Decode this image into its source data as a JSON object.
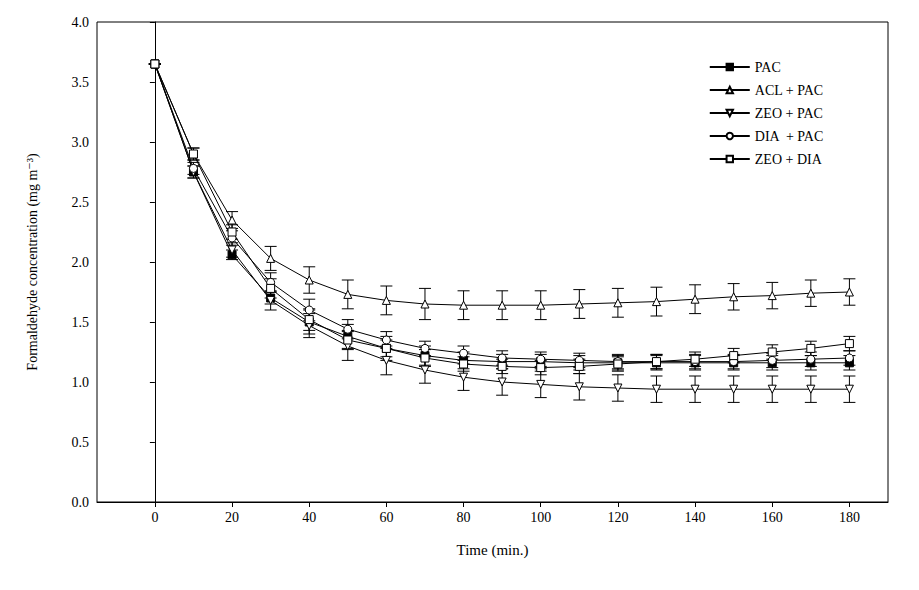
{
  "chart_data": {
    "type": "line",
    "x_label": "Time (min.)",
    "y_label": "Formaldehyde concentration (mg m⁻³)",
    "x": [
      0,
      10,
      20,
      30,
      40,
      50,
      60,
      70,
      80,
      90,
      100,
      110,
      120,
      130,
      140,
      150,
      160,
      170,
      180
    ],
    "xlim": [
      -15,
      190
    ],
    "xticks": [
      0,
      20,
      40,
      60,
      80,
      100,
      120,
      140,
      160,
      180
    ],
    "ylim": [
      0,
      4
    ],
    "yticks": [
      {
        "value": 0,
        "label": "0.0"
      },
      {
        "value": 0.5,
        "label": "0.5"
      },
      {
        "value": 1,
        "label": "1.0"
      },
      {
        "value": 1.5,
        "label": "1.5"
      },
      {
        "value": 2,
        "label": "2.0"
      },
      {
        "value": 2.5,
        "label": "2.5"
      },
      {
        "value": 3,
        "label": "3.0"
      },
      {
        "value": 3.5,
        "label": "3.5"
      },
      {
        "value": 4,
        "label": "4.0"
      }
    ],
    "grid": false,
    "legend": "upper right",
    "series": [
      {
        "name": "PAC",
        "color": "#000000",
        "marker": "filled_square",
        "line_style": "solid",
        "values": [
          3.65,
          2.75,
          2.06,
          1.7,
          1.5,
          1.38,
          1.28,
          1.22,
          1.18,
          1.17,
          1.17,
          1.16,
          1.16,
          1.16,
          1.16,
          1.16,
          1.16,
          1.16,
          1.16
        ],
        "errors": [
          0,
          0.05,
          0.04,
          0.05,
          0.1,
          0.1,
          0.1,
          0.08,
          0.07,
          0.06,
          0.06,
          0.06,
          0.06,
          0.06,
          0.06,
          0.06,
          0.06,
          0.06,
          0.06
        ]
      },
      {
        "name": "ACL + PAC",
        "color": "#000000",
        "marker": "triangle_up",
        "line_style": "solid",
        "values": [
          3.65,
          2.9,
          2.35,
          2.03,
          1.85,
          1.73,
          1.68,
          1.65,
          1.64,
          1.64,
          1.64,
          1.65,
          1.66,
          1.67,
          1.69,
          1.71,
          1.72,
          1.74,
          1.75
        ],
        "errors": [
          0,
          0.05,
          0.07,
          0.1,
          0.11,
          0.12,
          0.12,
          0.13,
          0.12,
          0.12,
          0.12,
          0.12,
          0.12,
          0.12,
          0.12,
          0.11,
          0.11,
          0.11,
          0.11
        ]
      },
      {
        "name": "ZEO + PAC",
        "color": "#000000",
        "marker": "triangle_down",
        "line_style": "solid",
        "values": [
          3.65,
          2.75,
          2.1,
          1.68,
          1.47,
          1.3,
          1.18,
          1.1,
          1.04,
          1.0,
          0.98,
          0.96,
          0.95,
          0.94,
          0.94,
          0.94,
          0.94,
          0.94,
          0.94
        ],
        "errors": [
          0,
          0.05,
          0.06,
          0.08,
          0.1,
          0.12,
          0.12,
          0.11,
          0.11,
          0.11,
          0.11,
          0.11,
          0.11,
          0.11,
          0.11,
          0.11,
          0.11,
          0.11,
          0.11
        ]
      },
      {
        "name": "DIA  + PAC",
        "color": "#000000",
        "marker": "circle",
        "line_style": "solid",
        "values": [
          3.65,
          2.78,
          2.2,
          1.83,
          1.6,
          1.44,
          1.35,
          1.28,
          1.24,
          1.2,
          1.19,
          1.18,
          1.17,
          1.17,
          1.17,
          1.17,
          1.18,
          1.19,
          1.2
        ],
        "errors": [
          0,
          0.05,
          0.06,
          0.08,
          0.09,
          0.08,
          0.07,
          0.06,
          0.06,
          0.06,
          0.06,
          0.06,
          0.06,
          0.06,
          0.06,
          0.06,
          0.06,
          0.06,
          0.06
        ]
      },
      {
        "name": "ZEO + DIA",
        "color": "#000000",
        "marker": "square",
        "line_style": "solid",
        "values": [
          3.65,
          2.9,
          2.25,
          1.78,
          1.52,
          1.35,
          1.28,
          1.2,
          1.15,
          1.13,
          1.12,
          1.13,
          1.15,
          1.17,
          1.19,
          1.22,
          1.25,
          1.28,
          1.32
        ],
        "errors": [
          0,
          0.05,
          0.06,
          0.08,
          0.09,
          0.08,
          0.07,
          0.07,
          0.06,
          0.06,
          0.06,
          0.06,
          0.06,
          0.06,
          0.06,
          0.06,
          0.06,
          0.06,
          0.06
        ]
      }
    ]
  }
}
